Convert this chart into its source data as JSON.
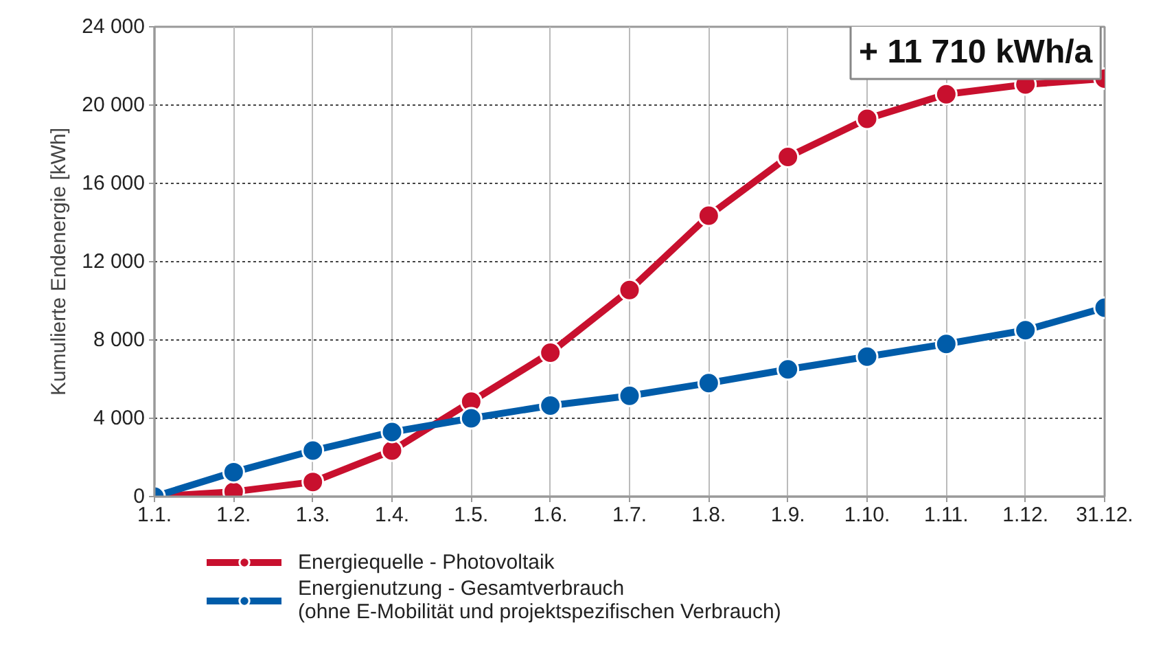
{
  "chart_data": {
    "type": "line",
    "ylabel": "Kumulierte Endenergie [kWh]",
    "categories": [
      "1.1.",
      "1.2.",
      "1.3.",
      "1.4.",
      "1.5.",
      "1.6.",
      "1.7.",
      "1.8.",
      "1.9.",
      "1.10.",
      "1.11.",
      "1.12.",
      "31.12."
    ],
    "series": [
      {
        "name": "Energiequelle - Photovoltaik",
        "color": "#c8102e",
        "values": [
          0,
          250,
          750,
          2350,
          4850,
          7350,
          10550,
          14350,
          17350,
          19300,
          20550,
          21050,
          21350
        ]
      },
      {
        "name": "Energienutzung - Gesamtverbrauch\n(ohne E-Mobilität und projektspezifischen Verbrauch)",
        "color": "#005ca9",
        "values": [
          0,
          1250,
          2350,
          3300,
          4000,
          4650,
          5150,
          5800,
          6500,
          7150,
          7800,
          8500,
          9650
        ]
      }
    ],
    "ylim": [
      0,
      24000
    ],
    "yticks": [
      {
        "value": 0,
        "label": "0"
      },
      {
        "value": 4000,
        "label": "4 000"
      },
      {
        "value": 8000,
        "label": "8 000"
      },
      {
        "value": 12000,
        "label": "12 000"
      },
      {
        "value": 16000,
        "label": "16 000"
      },
      {
        "value": 20000,
        "label": "20 000"
      },
      {
        "value": 24000,
        "label": "24 000"
      }
    ],
    "annotations": [
      "+ 11 710 kWh/a"
    ],
    "grid": true,
    "legend": "bottom left",
    "marker": "circle",
    "line_style": "solid"
  }
}
